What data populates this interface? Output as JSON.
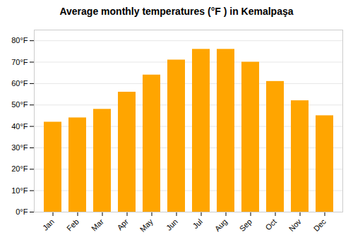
{
  "chart_data": {
    "type": "bar",
    "title": "Average monthly temperatures (°F ) in Kemalpaşa",
    "categories": [
      "Jan",
      "Feb",
      "Mar",
      "Apr",
      "May",
      "Jun",
      "Jul",
      "Aug",
      "Sep",
      "Oct",
      "Nov",
      "Dec"
    ],
    "values": [
      42,
      44,
      48,
      56,
      64,
      71,
      76,
      76,
      70,
      61,
      52,
      45
    ],
    "color": "#FFA500",
    "ylim": [
      0,
      85
    ],
    "yticks": [
      {
        "value": 0,
        "label": "0°F"
      },
      {
        "value": 10,
        "label": "10°F"
      },
      {
        "value": 20,
        "label": "20°F"
      },
      {
        "value": 30,
        "label": "30°F"
      },
      {
        "value": 40,
        "label": "40°F"
      },
      {
        "value": 50,
        "label": "50°F"
      },
      {
        "value": 60,
        "label": "60°F"
      },
      {
        "value": 70,
        "label": "70°F"
      },
      {
        "value": 80,
        "label": "80°F"
      }
    ],
    "grid": true
  }
}
